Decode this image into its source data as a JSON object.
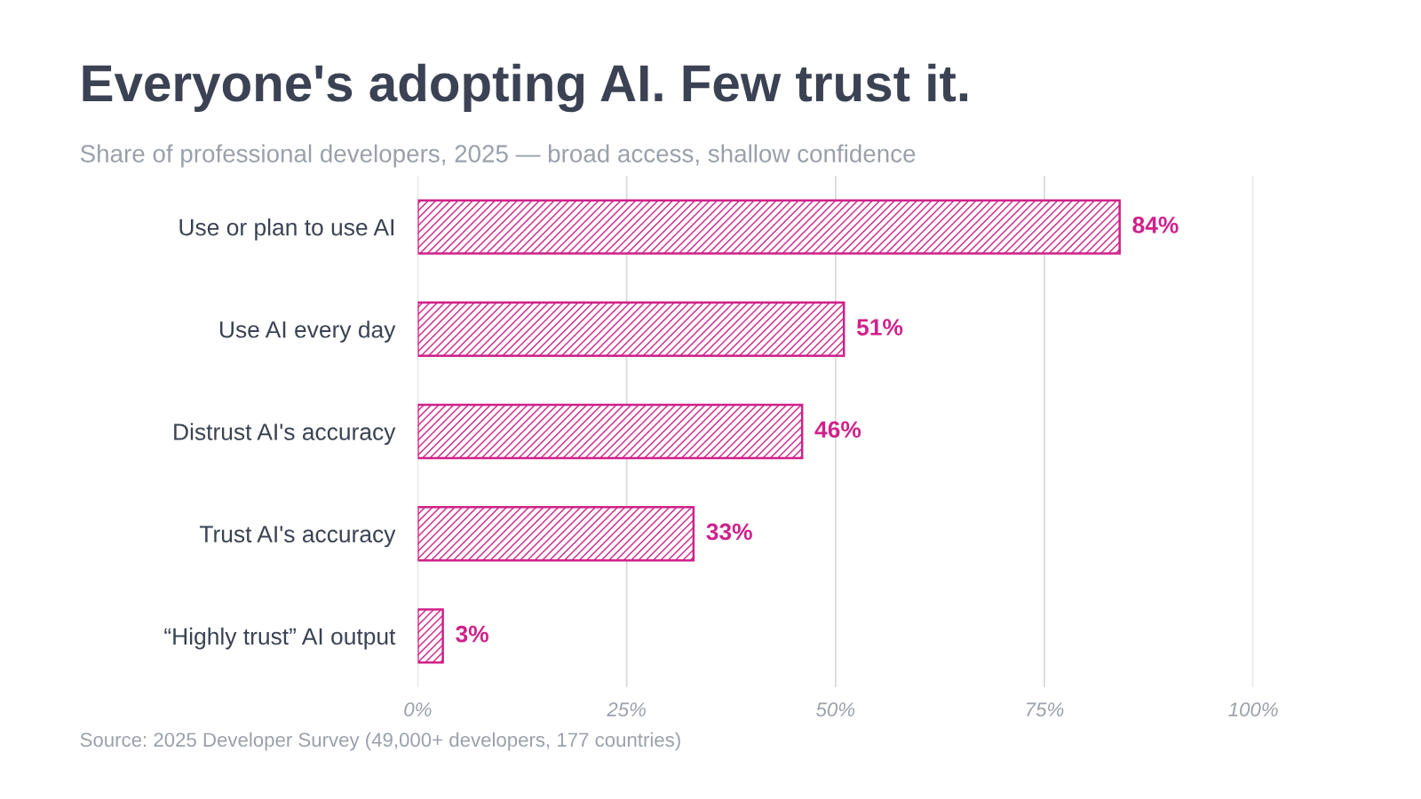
{
  "chart_data": {
    "type": "bar",
    "orientation": "horizontal",
    "title": "Everyone's adopting AI. Few trust it.",
    "subtitle": "Share of professional developers, 2025 — broad access, shallow confidence",
    "categories": [
      "Use or plan to use AI",
      "Use AI every day",
      "Distrust AI's accuracy",
      "Trust AI's accuracy",
      "“Highly trust” AI output"
    ],
    "values": [
      84,
      51,
      46,
      33,
      3
    ],
    "color": "#d0218a",
    "value_labels": [
      "84%",
      "51%",
      "46%",
      "33%",
      "3%"
    ],
    "xlim": [
      0,
      100
    ],
    "xticks": [
      {
        "value": 0,
        "label": "0%"
      },
      {
        "value": 25,
        "label": "25%"
      },
      {
        "value": 50,
        "label": "50%"
      },
      {
        "value": 75,
        "label": "75%"
      },
      {
        "value": 100,
        "label": "100%"
      }
    ],
    "grid": "x",
    "legend": false,
    "annotations": [
      "Source: 2025 Developer Survey (49,000+ developers, 177 countries)"
    ]
  }
}
